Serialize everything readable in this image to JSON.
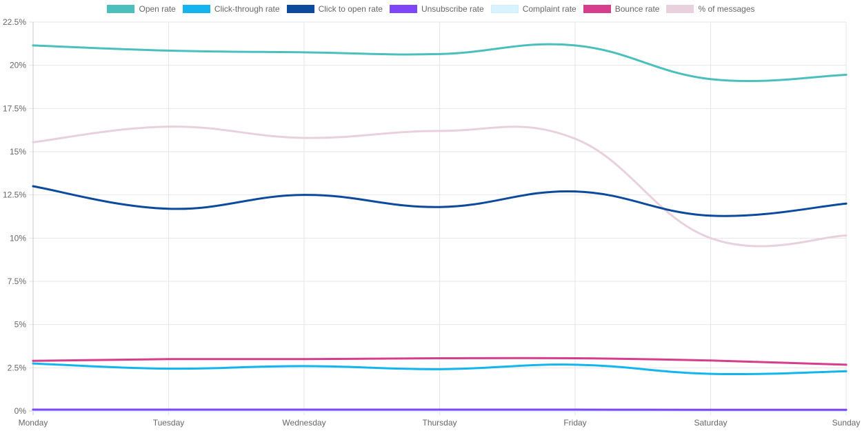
{
  "chart_data": {
    "type": "line",
    "title": "",
    "xlabel": "",
    "ylabel": "",
    "categories": [
      "Monday",
      "Tuesday",
      "Wednesday",
      "Thursday",
      "Friday",
      "Saturday",
      "Sunday"
    ],
    "ylim": [
      0,
      22.5
    ],
    "yticks": [
      {
        "value": 0,
        "label": "0%"
      },
      {
        "value": 2.5,
        "label": "2.5%"
      },
      {
        "value": 5,
        "label": "5%"
      },
      {
        "value": 7.5,
        "label": "7.5%"
      },
      {
        "value": 10,
        "label": "10%"
      },
      {
        "value": 12.5,
        "label": "12.5%"
      },
      {
        "value": 15,
        "label": "15%"
      },
      {
        "value": 17.5,
        "label": "17.5%"
      },
      {
        "value": 20,
        "label": "20%"
      },
      {
        "value": 22.5,
        "label": "22.5%"
      }
    ],
    "grid": true,
    "legend_position": "top",
    "series": [
      {
        "name": "Open rate",
        "color": "#4bbfbd",
        "values": [
          21.15,
          20.85,
          20.75,
          20.65,
          21.15,
          19.2,
          19.45
        ]
      },
      {
        "name": "Click-through rate",
        "color": "#12b5ee",
        "values": [
          2.75,
          2.45,
          2.6,
          2.42,
          2.68,
          2.15,
          2.3
        ]
      },
      {
        "name": "Click to open rate",
        "color": "#0b4a9d",
        "values": [
          13.0,
          11.7,
          12.5,
          11.8,
          12.7,
          11.3,
          12.0
        ]
      },
      {
        "name": "Unsubscribe rate",
        "color": "#7e46f6",
        "values": [
          0.08,
          0.08,
          0.08,
          0.08,
          0.08,
          0.07,
          0.07
        ]
      },
      {
        "name": "Complaint rate",
        "color": "#d8f3fd",
        "values": [
          0.01,
          0.01,
          0.01,
          0.01,
          0.01,
          0.01,
          0.01
        ]
      },
      {
        "name": "Bounce rate",
        "color": "#d63d8c",
        "values": [
          2.9,
          3.0,
          3.0,
          3.05,
          3.05,
          2.92,
          2.68
        ]
      },
      {
        "name": "% of messages",
        "color": "#e8d1dd",
        "values": [
          15.55,
          16.45,
          15.8,
          16.2,
          15.75,
          10.0,
          10.15
        ]
      }
    ]
  }
}
